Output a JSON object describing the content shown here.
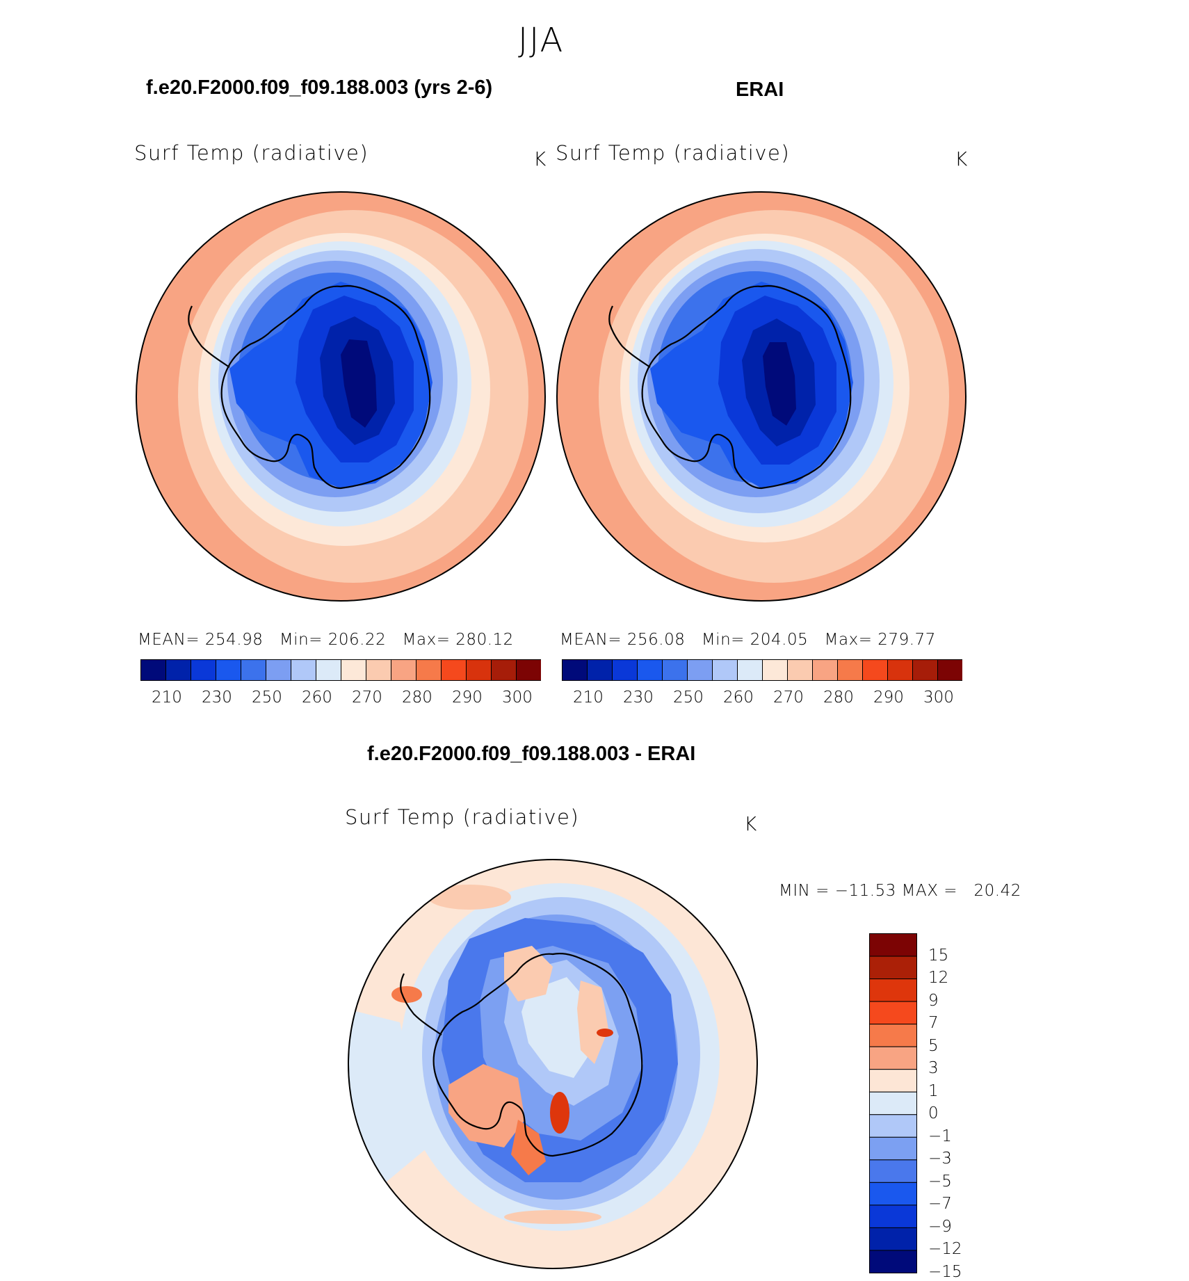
{
  "season": "JJA",
  "panels": {
    "model": {
      "title": "f.e20.F2000.f09_f09.188.003 (yrs 2-6)",
      "variable": "Surf Temp (radiative)",
      "units": "K",
      "stats": {
        "mean_label": "MEAN=",
        "mean": "254.98",
        "min_label": "Min=",
        "min": "206.22",
        "max_label": "Max=",
        "max": "280.12"
      }
    },
    "obs": {
      "title": "ERAI",
      "variable": "Surf Temp (radiative)",
      "units": "K",
      "stats": {
        "mean_label": "MEAN=",
        "mean": "256.08",
        "min_label": "Min=",
        "min": "204.05",
        "max_label": "Max=",
        "max": "279.77"
      }
    },
    "diff": {
      "title": "f.e20.F2000.f09_f09.188.003 - ERAI",
      "variable": "Surf Temp (radiative)",
      "units": "K",
      "minmax": "MIN = −11.53 MAX =   20.42"
    }
  },
  "abs_colorbar": {
    "colors": [
      "#000a7a",
      "#0022aa",
      "#0a38d8",
      "#1a58ee",
      "#3c72ec",
      "#7c9ef2",
      "#b0c8f8",
      "#dceaf8",
      "#fde8d8",
      "#fbcbb0",
      "#f8a483",
      "#f67a4a",
      "#f5491d",
      "#d8330d",
      "#a61d09",
      "#7c0404"
    ],
    "tick_labels": [
      "210",
      "230",
      "250",
      "260",
      "270",
      "280",
      "290",
      "300"
    ]
  },
  "diff_colorbar": {
    "colors": [
      "#7c0404",
      "#ab2007",
      "#de360c",
      "#f5491d",
      "#f67a4a",
      "#f8a483",
      "#fde6d6",
      "#dceaf8",
      "#b0c8f8",
      "#7ca0f2",
      "#4a78ec",
      "#1a58ee",
      "#0a38d8",
      "#0022aa",
      "#000a7a"
    ],
    "tick_labels": [
      "15",
      "12",
      "9",
      "7",
      "5",
      "3",
      "1",
      "0",
      "−1",
      "−3",
      "−5",
      "−7",
      "−9",
      "−12",
      "−15"
    ]
  }
}
